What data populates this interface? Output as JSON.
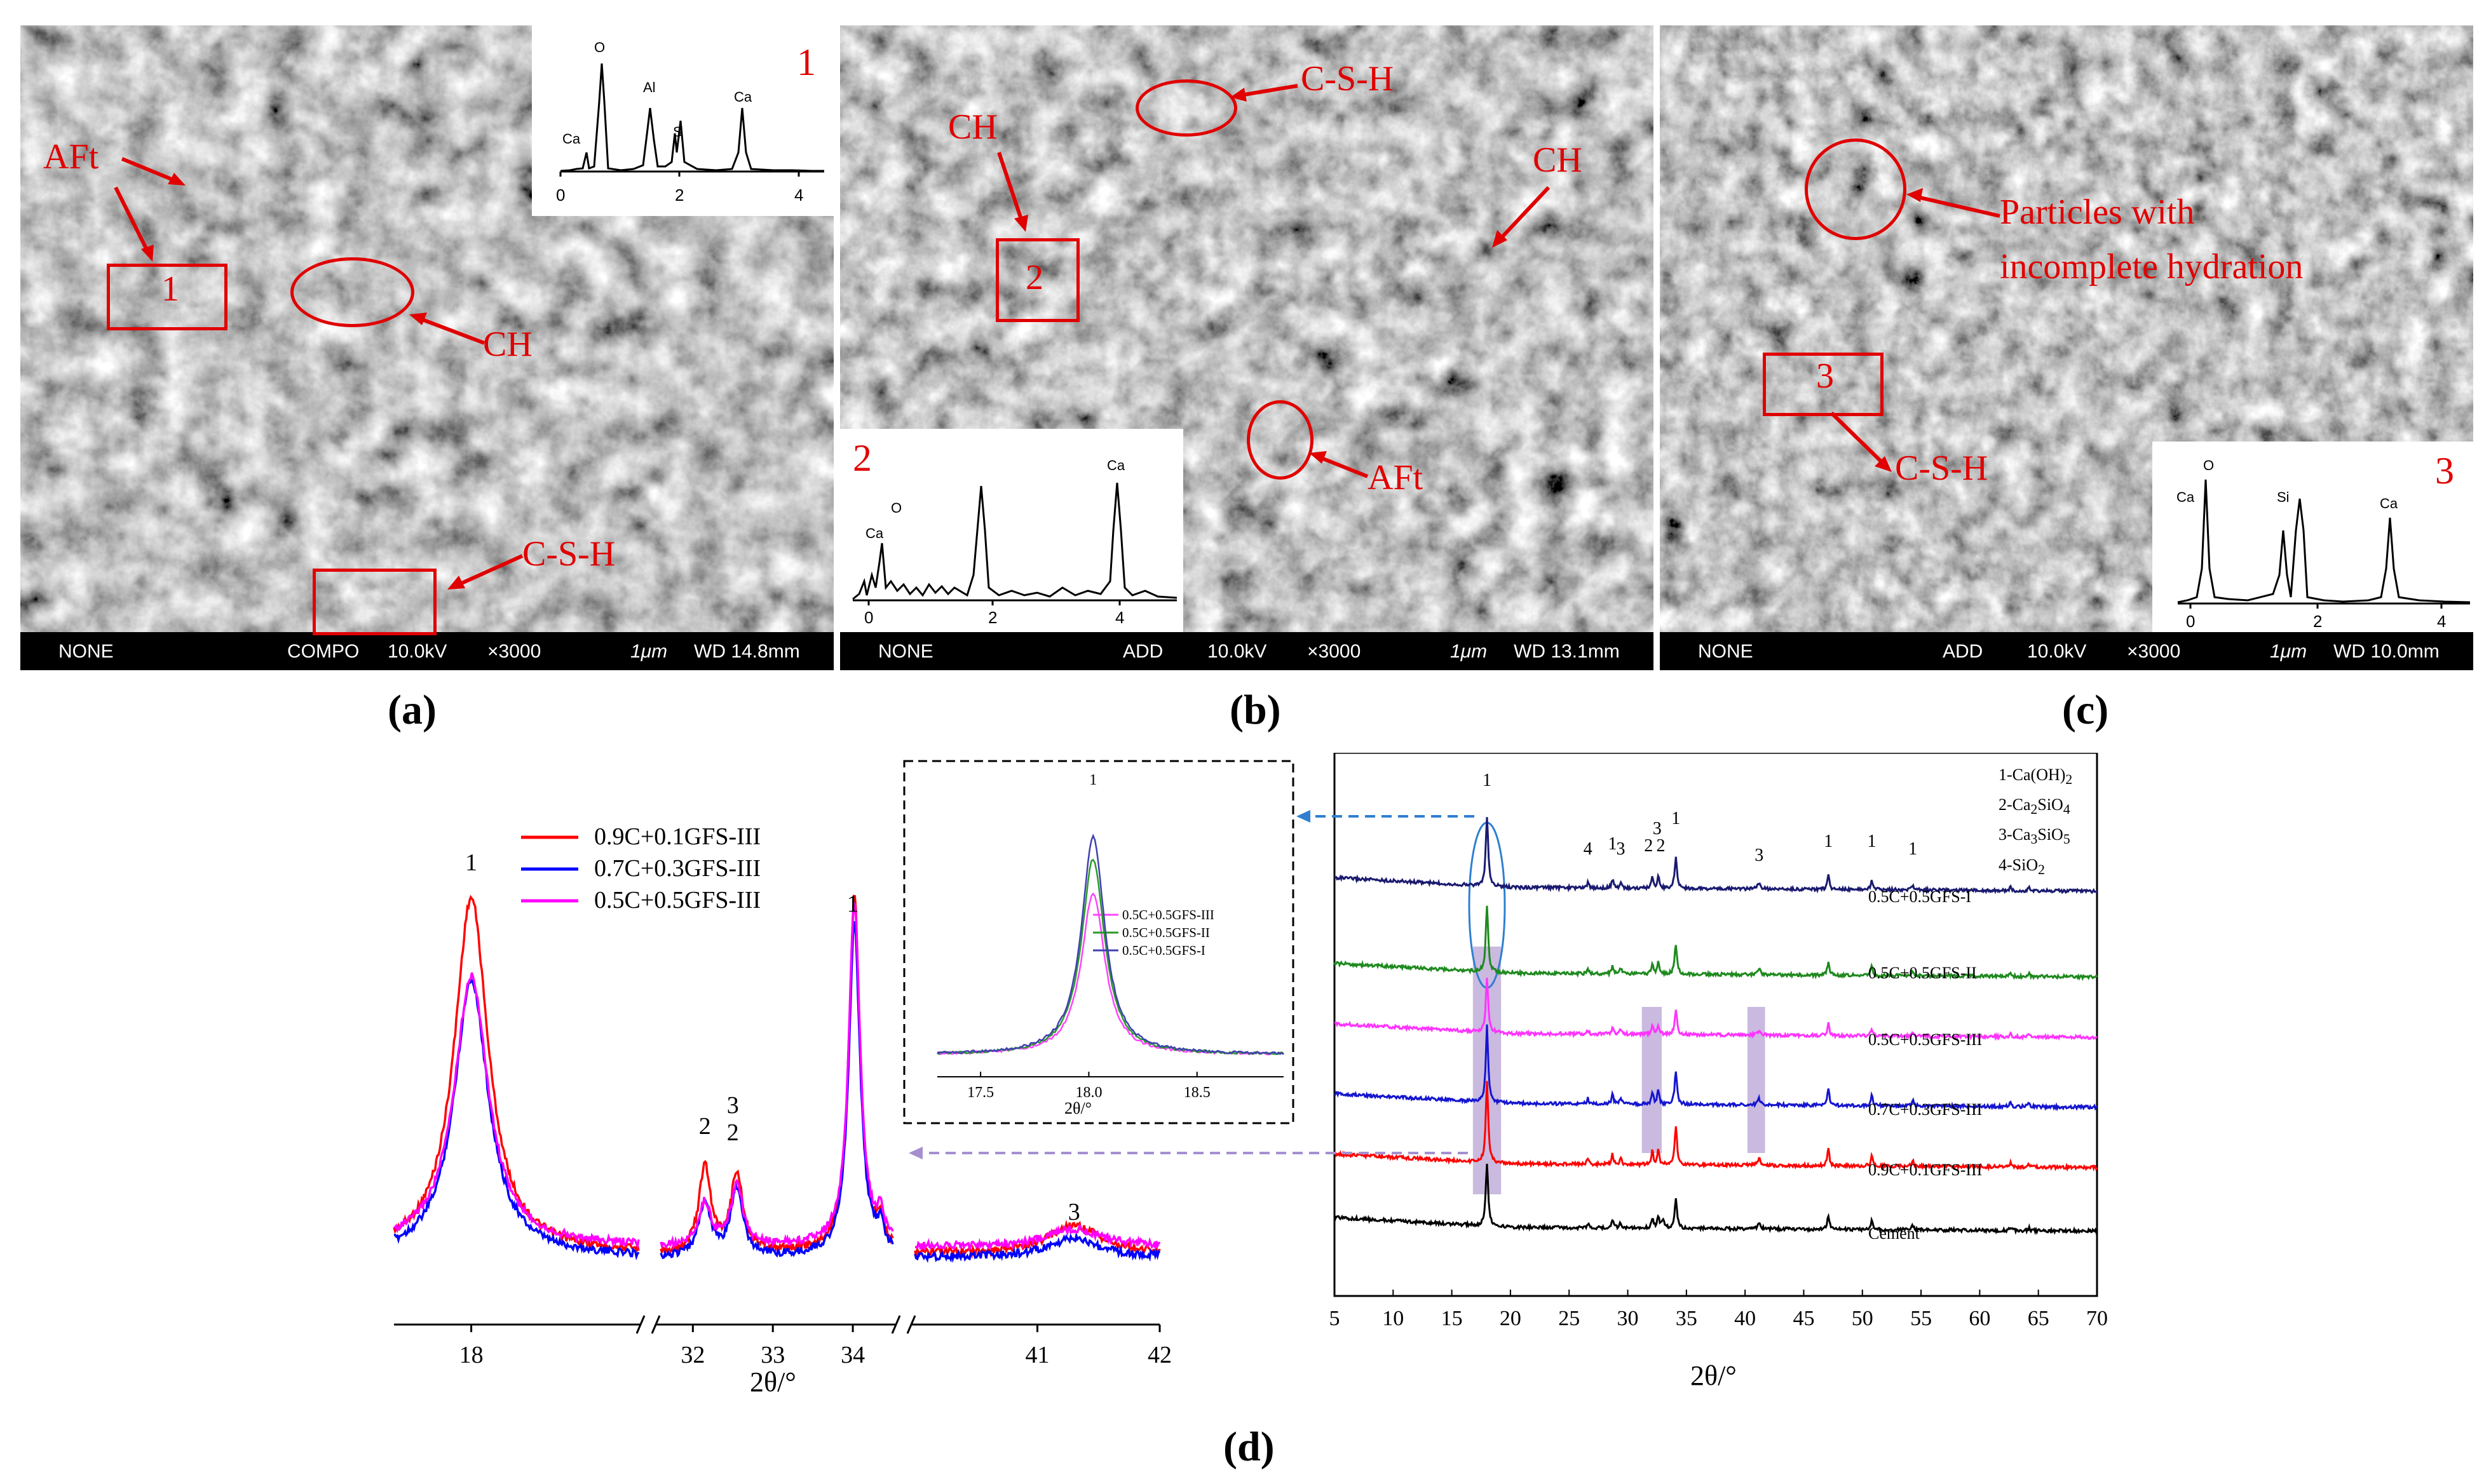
{
  "panels": {
    "a": {
      "caption": "(a)",
      "sem_bar": {
        "left": "NONE",
        "mode": "COMPO",
        "kv": "10.0kV",
        "mag": "×3000",
        "scale": "1μm",
        "wd": "WD 14.8mm"
      },
      "labels": {
        "aft": "AFt",
        "spot": "1",
        "ch": "CH",
        "csh": "C-S-H"
      },
      "eds": {
        "number": "1",
        "peaks": [
          "O",
          "Ca",
          "Al",
          "S",
          "Ca"
        ],
        "ticks": [
          "0",
          "2",
          "4"
        ]
      }
    },
    "b": {
      "caption": "(b)",
      "sem_bar": {
        "left": "NONE",
        "mode": "ADD",
        "kv": "10.0kV",
        "mag": "×3000",
        "scale": "1μm",
        "wd": "WD 13.1mm"
      },
      "labels": {
        "csh": "C-S-H",
        "ch1": "CH",
        "ch2": "CH",
        "spot": "2",
        "aft": "AFt"
      },
      "eds": {
        "number": "2",
        "peaks": [
          "Ca",
          "O",
          "Ca"
        ],
        "ticks": [
          "0",
          "2",
          "4"
        ]
      }
    },
    "c": {
      "caption": "(c)",
      "sem_bar": {
        "left": "NONE",
        "mode": "ADD",
        "kv": "10.0kV",
        "mag": "×3000",
        "scale": "1μm",
        "wd": "WD 10.0mm"
      },
      "labels": {
        "particles1": "Particles with",
        "particles2": "incomplete hydration",
        "spot": "3",
        "csh": "C-S-H"
      },
      "eds": {
        "number": "3",
        "peaks": [
          "O",
          "Ca",
          "Si",
          "Ca"
        ],
        "ticks": [
          "0",
          "2",
          "4"
        ]
      }
    },
    "d": {
      "caption": "(d)"
    }
  },
  "chart_data": [
    {
      "type": "line",
      "name": "zoomed XRD peaks (broken axis)",
      "xlabel": "2θ/°",
      "x_ticks": [
        "18",
        "32",
        "33",
        "34",
        "41",
        "42"
      ],
      "series": [
        {
          "name": "0.9C+0.1GFS-III",
          "color": "#ff0000"
        },
        {
          "name": "0.7C+0.3GFS-III",
          "color": "#0000ff"
        },
        {
          "name": "0.5C+0.5GFS-III",
          "color": "#ff00ff"
        }
      ],
      "peak_labels": [
        {
          "x": 18.0,
          "label": "1"
        },
        {
          "x": 32.15,
          "label": "2"
        },
        {
          "x": 32.5,
          "label": "3"
        },
        {
          "x": 32.5,
          "label": "2"
        },
        {
          "x": 34.0,
          "label": "1"
        },
        {
          "x": 41.3,
          "label": "3"
        }
      ]
    },
    {
      "type": "line",
      "name": "CH peak inset",
      "xlabel": "2θ/°",
      "xlim": [
        17.3,
        18.9
      ],
      "x_ticks": [
        "17.5",
        "18.0",
        "18.5"
      ],
      "peak_label": "1",
      "series": [
        {
          "name": "0.5C+0.5GFS-III",
          "color": "#ff44ff",
          "peak": 0.58
        },
        {
          "name": "0.5C+0.5GFS-II",
          "color": "#2a9a2a",
          "peak": 0.7
        },
        {
          "name": "0.5C+0.5GFS-I",
          "color": "#4040b0",
          "peak": 0.78
        }
      ]
    },
    {
      "type": "line",
      "name": "full XRD patterns",
      "xlabel": "2θ/°",
      "xlim": [
        5,
        70
      ],
      "x_ticks": [
        "5",
        "10",
        "15",
        "20",
        "25",
        "30",
        "35",
        "40",
        "45",
        "50",
        "55",
        "60",
        "65",
        "70"
      ],
      "legend": [
        "1-Ca(OH)",
        "2-Ca",
        "3-Ca",
        "4-SiO"
      ],
      "legend_subs": {
        "l1": "2",
        "l2a": "2",
        "l2b": "SiO",
        "l2c": "4",
        "l3a": "3",
        "l3b": "SiO",
        "l3c": "5",
        "l4": "2"
      },
      "series": [
        {
          "name": "0.5C+0.5GFS-I",
          "color": "#1a1a70"
        },
        {
          "name": "0.5C+0.5GFS-II",
          "color": "#1e8a1e"
        },
        {
          "name": "0.5C+0.5GFS-III",
          "color": "#ff33ff"
        },
        {
          "name": "0.7C+0.3GFS-III",
          "color": "#1515d0"
        },
        {
          "name": "0.9C+0.1GFS-III",
          "color": "#ff0000"
        },
        {
          "name": "Cement",
          "color": "#000000"
        }
      ],
      "peak_labels": [
        {
          "x": 18.0,
          "label": "1"
        },
        {
          "x": 26.6,
          "label": "4"
        },
        {
          "x": 28.7,
          "label": "1"
        },
        {
          "x": 29.4,
          "label": "3"
        },
        {
          "x": 32.1,
          "label": "2"
        },
        {
          "x": 32.6,
          "label": "2"
        },
        {
          "x": 32.5,
          "label": "3"
        },
        {
          "x": 34.1,
          "label": "1"
        },
        {
          "x": 41.2,
          "label": "3"
        },
        {
          "x": 47.1,
          "label": "1"
        },
        {
          "x": 50.8,
          "label": "1"
        },
        {
          "x": 54.3,
          "label": "1"
        }
      ]
    }
  ]
}
